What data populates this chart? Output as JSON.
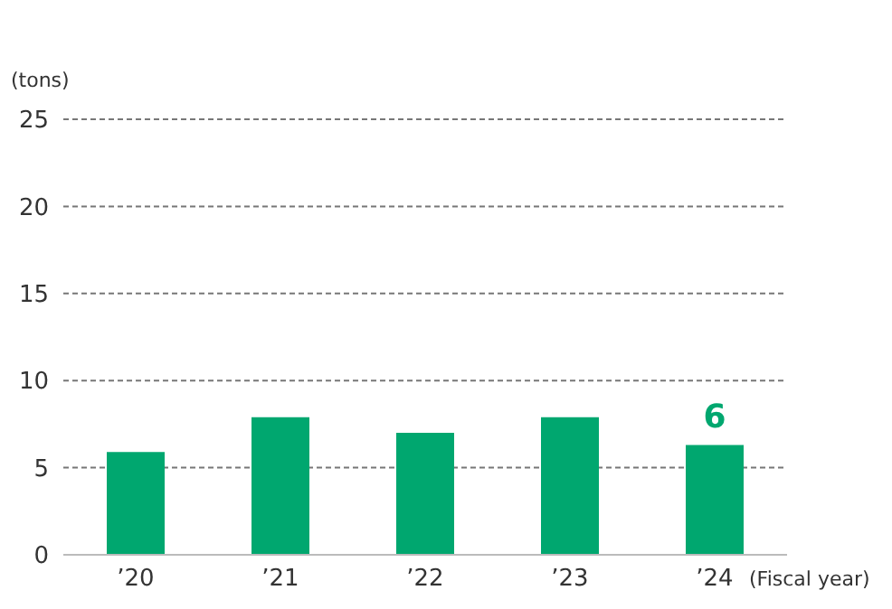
{
  "chart_data": {
    "type": "bar",
    "ylabel": "(tons)",
    "xlabel": "(Fiscal year)",
    "categories": [
      "’20",
      "’21",
      "’22",
      "’23",
      "’24"
    ],
    "values": [
      5.9,
      7.9,
      7,
      7.9,
      6.3
    ],
    "value_labels": [
      null,
      null,
      null,
      null,
      "6"
    ],
    "color": "#00a76f",
    "ylim": [
      0,
      25
    ],
    "yticks": [
      0,
      5,
      10,
      15,
      20,
      25
    ],
    "grid": "y"
  }
}
